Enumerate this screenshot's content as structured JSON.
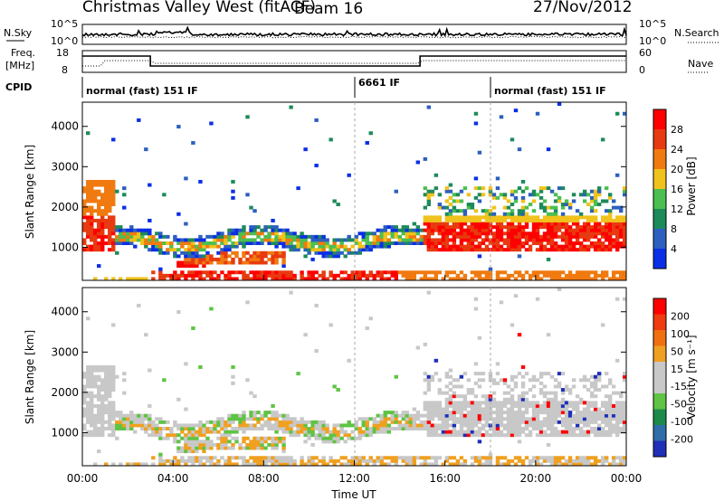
{
  "header": {
    "station": "Christmas Valley West (fitACF)",
    "beam": "Beam 16",
    "date": "27/Nov/2012"
  },
  "top_panel": {
    "left_label": "N.Sky",
    "right_label": "N.Search",
    "left_ticks": [
      "10^5",
      "10^0"
    ],
    "right_ticks": [
      "10^5",
      "10^0"
    ]
  },
  "freq_panel": {
    "left_label_1": "Freq.",
    "left_label_2": "[MHz]",
    "right_label": "Nave",
    "left_ticks": [
      "18",
      "8"
    ],
    "right_ticks": [
      "60",
      "0"
    ]
  },
  "cpid": {
    "label": "CPID",
    "segments": [
      {
        "text": "normal (fast) 151 IF",
        "start": 0
      },
      {
        "text": "6661 IF",
        "start": 12.0
      },
      {
        "text": "normal (fast) 151 IF",
        "start": 18.0
      }
    ]
  },
  "chart_data": [
    {
      "type": "heatmap",
      "name": "power",
      "ylabel": "Slant Range [km]",
      "ylim": [
        180,
        4600
      ],
      "yticks": [
        1000,
        2000,
        3000,
        4000
      ],
      "xlim": [
        0,
        24
      ],
      "colorbar": {
        "label": "Power [dB]",
        "ticks": [
          "4",
          "8",
          "12",
          "16",
          "20",
          "24",
          "28"
        ],
        "colors": [
          "#0a2ee6",
          "#2c5fbf",
          "#1d8a5a",
          "#4bbf50",
          "#f0c21c",
          "#f07a10",
          "#e83a10",
          "#ff0000"
        ]
      }
    },
    {
      "type": "heatmap",
      "name": "velocity",
      "ylabel": "Slant Range [km]",
      "ylim": [
        180,
        4600
      ],
      "yticks": [
        1000,
        2000,
        3000,
        4000
      ],
      "xlim": [
        0,
        24
      ],
      "colorbar": {
        "label": "Velocity [m s⁻¹]",
        "ticks": [
          "200",
          "100",
          "50",
          "15",
          "-15",
          "-50",
          "-100",
          "-200"
        ],
        "colors": [
          "#1f2fb8",
          "#2f6ea8",
          "#1d8a4a",
          "#5ec443",
          "#c8c8c8",
          "#c8c8c8",
          "#f0a020",
          "#f07010",
          "#f03a10",
          "#ff0000"
        ]
      }
    }
  ],
  "xaxis": {
    "label": "Time UT",
    "ticks": [
      "00:00",
      "04:00",
      "08:00",
      "12:00",
      "16:00",
      "20:00",
      "00:00"
    ]
  }
}
